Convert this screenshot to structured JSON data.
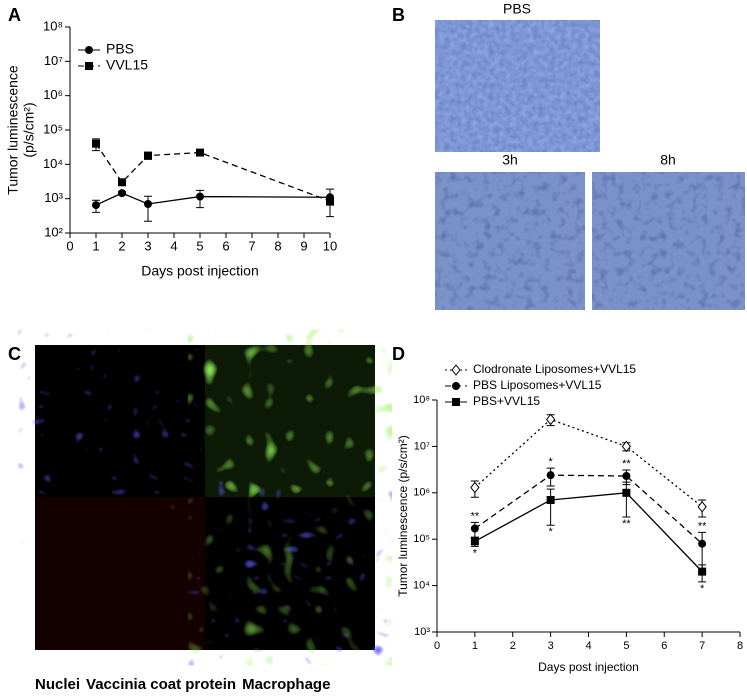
{
  "panel_labels": [
    "A",
    "B",
    "C",
    "D"
  ],
  "chart_data": [
    {
      "type": "line",
      "x_label": "Days post injection",
      "y_label": [
        "Tumor luminescence",
        "(p/s/cm²)"
      ],
      "y_log": true,
      "legend": "upper left",
      "x": [
        1,
        2,
        3,
        5,
        10
      ],
      "xlim": [
        0,
        10
      ],
      "xticks": [
        0,
        1,
        2,
        3,
        4,
        5,
        6,
        7,
        8,
        9,
        10
      ],
      "ylim": [
        100,
        100000000
      ],
      "yticks": [
        {
          "value": 100,
          "label": "10²"
        },
        {
          "value": 1000,
          "label": "10³"
        },
        {
          "value": 10000,
          "label": "10⁴"
        },
        {
          "value": 100000,
          "label": "10⁵"
        },
        {
          "value": 1000000,
          "label": "10⁶"
        },
        {
          "value": 10000000,
          "label": "10⁷"
        },
        {
          "value": 100000000,
          "label": "10⁸"
        }
      ],
      "series": [
        {
          "name": "PBS",
          "color": "#000000",
          "marker": "circle",
          "dash": "solid",
          "values": [
            650,
            1450,
            700,
            1150,
            1100
          ],
          "errors": [
            250,
            150,
            480,
            600,
            800
          ]
        },
        {
          "name": "VVL15",
          "color": "#000000",
          "marker": "square",
          "dash": "dashed",
          "values": [
            40000,
            3000,
            18000,
            22000,
            850
          ],
          "errors": [
            15000,
            500,
            4000,
            4000,
            200
          ]
        }
      ]
    },
    {
      "type": "line",
      "x_label": "Days post injection",
      "y_label": [
        "Tumor luminescence (p/s/cm²)"
      ],
      "y_log": true,
      "legend": "upper left",
      "x": [
        1,
        3,
        5,
        7
      ],
      "xlim": [
        0,
        8
      ],
      "xticks": [
        0,
        1,
        2,
        3,
        4,
        5,
        6,
        7,
        8
      ],
      "ylim": [
        1000,
        100000000
      ],
      "yticks": [
        {
          "value": 1000,
          "label": "10³"
        },
        {
          "value": 10000,
          "label": "10⁴"
        },
        {
          "value": 100000,
          "label": "10⁵"
        },
        {
          "value": 1000000,
          "label": "10⁶"
        },
        {
          "value": 10000000,
          "label": "10⁷"
        },
        {
          "value": 100000000,
          "label": "10⁸"
        }
      ],
      "series": [
        {
          "name": "Clodronate Liposomes+VVL15",
          "color": "#000000",
          "marker": "diamond",
          "dash": "dotted",
          "values": [
            1300000,
            38000000,
            10000000,
            500000
          ],
          "errors": [
            500000,
            10000000,
            2000000,
            200000
          ],
          "significance": [
            null,
            null,
            null,
            null
          ]
        },
        {
          "name": "PBS Liposomes+VVL15",
          "color": "#000000",
          "marker": "circle",
          "dash": "dashed",
          "values": [
            170000,
            2400000,
            2300000,
            80000
          ],
          "errors": [
            60000,
            1000000,
            800000,
            60000
          ],
          "significance": [
            "**",
            "*",
            "**",
            "**"
          ]
        },
        {
          "name": "PBS+VVL15",
          "color": "#000000",
          "marker": "square",
          "dash": "solid",
          "values": [
            90000,
            700000,
            1000000,
            20000
          ],
          "errors": [
            20000,
            500000,
            700000,
            8000
          ],
          "significance": [
            "*",
            "*",
            "**",
            "*"
          ]
        }
      ]
    }
  ],
  "images": {
    "b_labels": [
      "PBS",
      "3h",
      "8h"
    ],
    "c_legend": [
      {
        "text": "Nuclei",
        "color": "#2233bb"
      },
      {
        "text": "Vaccinia coat protein",
        "color": "#8b1a1a"
      },
      {
        "text": "Macrophage",
        "color": "#3a9a2a"
      }
    ]
  }
}
